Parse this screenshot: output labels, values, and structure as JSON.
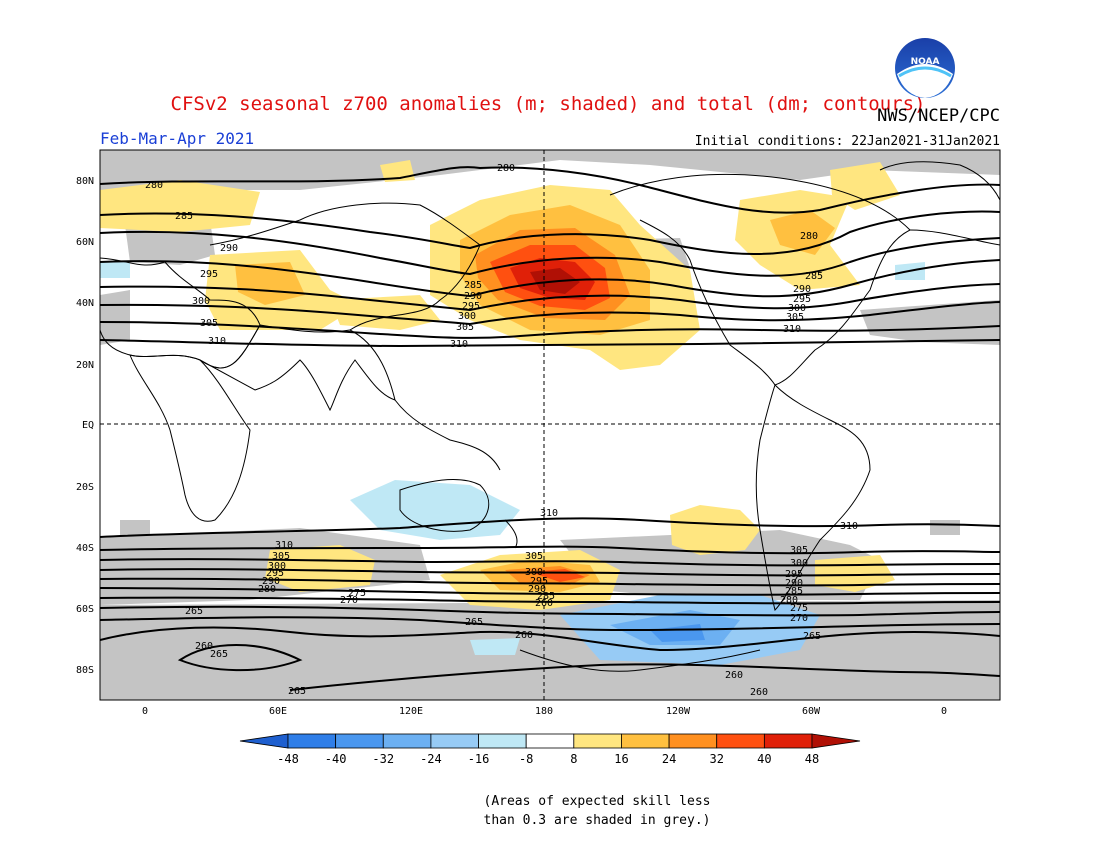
{
  "header": {
    "title": "CFSv2 seasonal z700 anomalies (m; shaded) and total (dm; contours)",
    "agency": "NWS/NCEP/CPC",
    "period": "Feb-Mar-Apr 2021",
    "initial_conditions": "Initial conditions: 22Jan2021-31Jan2021",
    "logo_text": "NOAA"
  },
  "map": {
    "lat_labels": [
      "80N",
      "60N",
      "40N",
      "20N",
      "EQ",
      "20S",
      "40S",
      "60S",
      "80S"
    ],
    "lon_labels": [
      "0",
      "60E",
      "120E",
      "180",
      "120W",
      "60W",
      "0"
    ],
    "nh_contour_labels": [
      "280",
      "285",
      "290",
      "295",
      "300",
      "305",
      "310"
    ],
    "sh_contour_labels": [
      "310",
      "305",
      "300",
      "295",
      "290",
      "285",
      "280",
      "275",
      "270",
      "265",
      "260"
    ]
  },
  "colorbar": {
    "ticks": [
      "-48",
      "-40",
      "-32",
      "-24",
      "-16",
      "-8",
      "8",
      "16",
      "24",
      "32",
      "40",
      "48"
    ],
    "colors": [
      "#1e5fcf",
      "#2f7ee8",
      "#4a97ef",
      "#6cb0f2",
      "#97cbf5",
      "#bfe8f5",
      "#ffffff",
      "#ffe680",
      "#ffc040",
      "#ff9020",
      "#ff5010",
      "#e02008",
      "#b01005"
    ]
  },
  "footnote": {
    "line1": "(Areas of expected skill less",
    "line2": "than 0.3 are shaded in grey.)"
  }
}
